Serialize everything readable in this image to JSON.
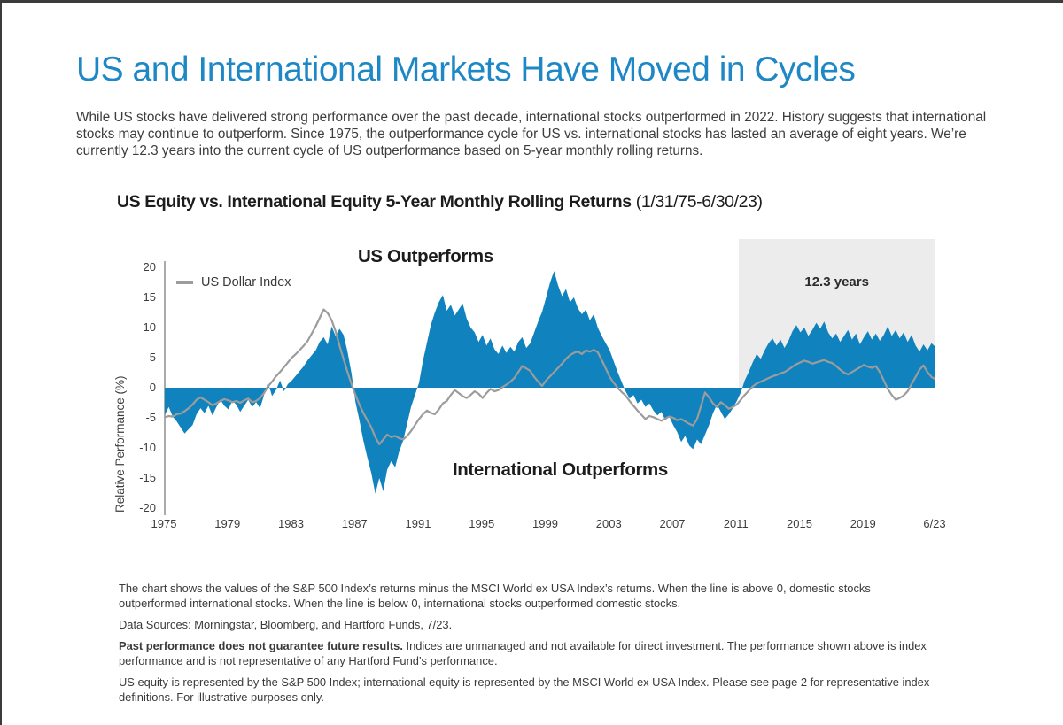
{
  "page": {
    "title": "US and International Markets Have Moved in Cycles",
    "intro": "While US stocks have delivered strong performance over the past decade, international stocks outperformed in 2022. History suggests that international stocks may continue to outperform. Since 1975, the outperformance cycle for US vs. international stocks has lasted an average of eight years. We’re currently 12.3 years into the current cycle of US outperformance based on 5-year monthly rolling returns."
  },
  "chart": {
    "title_bold": "US Equity vs. International Equity 5-Year Monthly Rolling Returns",
    "title_range": "(1/31/75-6/30/23)",
    "y_axis_label": "Relative Performance (%)",
    "legend_label": "US Dollar Index",
    "label_us_outperforms": "US Outperforms",
    "label_international_outperforms": "International Outperforms",
    "highlight_label": "12.3 years",
    "y_ticks": [
      20,
      15,
      10,
      5,
      0,
      -5,
      -10,
      -15,
      -20
    ],
    "x_ticks": [
      {
        "label": "1975",
        "year": 1975
      },
      {
        "label": "1979",
        "year": 1979
      },
      {
        "label": "1983",
        "year": 1983
      },
      {
        "label": "1987",
        "year": 1987
      },
      {
        "label": "1991",
        "year": 1991
      },
      {
        "label": "1995",
        "year": 1995
      },
      {
        "label": "1999",
        "year": 1999
      },
      {
        "label": "2003",
        "year": 2003
      },
      {
        "label": "2007",
        "year": 2007
      },
      {
        "label": "2011",
        "year": 2011
      },
      {
        "label": "2015",
        "year": 2015
      },
      {
        "label": "2019",
        "year": 2019
      },
      {
        "label": "6/23",
        "year": 2023.5
      }
    ],
    "colors": {
      "area_blue": "#1082BD",
      "line_gray": "#9C9C9C",
      "highlight_gray": "#ECECEC",
      "title_blue": "#1E87C5"
    }
  },
  "chart_data": {
    "type": "area",
    "title": "US Equity vs. International Equity 5-Year Monthly Rolling Returns (1/31/75-6/30/23)",
    "xlabel": "",
    "ylabel": "Relative Performance (%)",
    "xlim": [
      1975,
      2023.5
    ],
    "ylim": [
      -20,
      20
    ],
    "grid": false,
    "legend_position": "top-left",
    "x_start": 1975,
    "x_step": 0.25,
    "highlight_region": {
      "from": 2011.2,
      "to": 2023.5,
      "label": "12.3 years"
    },
    "annotations": [
      "US Outperforms",
      "International Outperforms",
      "12.3 years"
    ],
    "series": [
      {
        "name": "US equity minus international equity 5-year rolling return (%)",
        "style": "area",
        "values": [
          -4.5,
          -3.2,
          -4.8,
          -5.6,
          -6.6,
          -7.6,
          -6.9,
          -6.2,
          -4.4,
          -3.4,
          -4.2,
          -3.0,
          -4.6,
          -3.2,
          -2.0,
          -3.0,
          -3.6,
          -2.2,
          -2.8,
          -4.0,
          -3.0,
          -2.0,
          -3.2,
          -2.4,
          -3.4,
          -1.2,
          0.9,
          -1.4,
          -0.4,
          1.2,
          -0.6,
          0.6,
          1.2,
          2.0,
          2.8,
          3.6,
          4.6,
          5.4,
          6.2,
          7.6,
          8.4,
          7.2,
          10.2,
          8.6,
          9.8,
          8.8,
          6.0,
          2.4,
          -2.4,
          -5.4,
          -8.8,
          -11.6,
          -14.2,
          -17.6,
          -15.0,
          -17.2,
          -13.6,
          -12.2,
          -13.2,
          -10.6,
          -8.8,
          -6.0,
          -3.2,
          -1.2,
          0.8,
          4.5,
          7.5,
          10.5,
          12.5,
          14.2,
          15.4,
          12.8,
          13.8,
          12.0,
          13.0,
          14.0,
          11.5,
          10.0,
          9.2,
          7.6,
          8.8,
          7.0,
          8.2,
          6.4,
          5.6,
          7.0,
          5.8,
          6.8,
          6.0,
          7.6,
          8.4,
          6.6,
          7.4,
          9.2,
          11.0,
          12.6,
          15.0,
          17.5,
          19.4,
          17.0,
          15.2,
          16.4,
          14.2,
          15.0,
          13.2,
          12.2,
          13.0,
          11.2,
          12.2,
          10.0,
          8.6,
          7.4,
          6.2,
          4.4,
          2.6,
          1.0,
          -0.6,
          -1.8,
          -1.2,
          -2.6,
          -2.0,
          -3.2,
          -2.6,
          -3.8,
          -4.6,
          -4.0,
          -5.4,
          -4.8,
          -6.2,
          -7.4,
          -9.0,
          -8.0,
          -9.6,
          -10.2,
          -8.6,
          -9.4,
          -7.8,
          -6.2,
          -4.2,
          -2.8,
          -4.0,
          -5.2,
          -4.4,
          -3.4,
          -2.2,
          -0.8,
          1.2,
          2.6,
          4.2,
          5.6,
          4.8,
          6.2,
          7.4,
          8.2,
          7.0,
          8.0,
          6.6,
          7.8,
          9.4,
          10.4,
          9.2,
          10.0,
          8.6,
          9.6,
          10.8,
          9.8,
          11.0,
          9.2,
          8.2,
          9.0,
          7.6,
          8.6,
          9.6,
          8.0,
          9.0,
          7.2,
          8.4,
          9.4,
          8.0,
          9.0,
          7.8,
          8.8,
          10.2,
          8.6,
          9.6,
          8.2,
          9.2,
          7.6,
          8.8,
          7.0,
          6.0,
          7.2,
          6.2,
          7.4,
          6.8
        ]
      },
      {
        "name": "US Dollar Index",
        "style": "line",
        "values": [
          -4.9,
          -4.7,
          -4.8,
          -4.4,
          -4.3,
          -3.9,
          -3.4,
          -2.8,
          -2.0,
          -1.6,
          -2.0,
          -2.4,
          -2.9,
          -2.6,
          -2.2,
          -1.9,
          -2.1,
          -2.4,
          -2.2,
          -2.5,
          -2.1,
          -1.8,
          -2.4,
          -2.2,
          -1.7,
          -0.9,
          0.2,
          1.0,
          1.9,
          2.6,
          3.4,
          4.2,
          5.0,
          5.6,
          6.3,
          7.0,
          7.8,
          9.0,
          10.2,
          11.6,
          13.0,
          12.4,
          11.2,
          9.4,
          7.0,
          4.8,
          2.6,
          0.6,
          -1.2,
          -2.8,
          -4.2,
          -5.4,
          -6.6,
          -8.2,
          -9.4,
          -8.6,
          -7.8,
          -8.2,
          -8.0,
          -8.4,
          -8.6,
          -8.0,
          -7.2,
          -6.2,
          -5.2,
          -4.4,
          -3.8,
          -4.2,
          -4.4,
          -3.6,
          -2.6,
          -2.2,
          -1.2,
          -0.4,
          -0.9,
          -1.4,
          -1.7,
          -1.2,
          -0.6,
          -1.0,
          -1.7,
          -0.9,
          -0.2,
          -0.6,
          -0.4,
          0.1,
          0.5,
          1.0,
          1.6,
          2.6,
          3.6,
          3.2,
          2.8,
          1.8,
          1.0,
          0.3,
          1.2,
          1.9,
          2.6,
          3.3,
          4.0,
          4.8,
          5.4,
          5.8,
          6.0,
          5.6,
          6.2,
          6.0,
          6.3,
          5.9,
          4.6,
          3.2,
          1.8,
          0.8,
          0.0,
          -0.7,
          -1.3,
          -2.2,
          -3.0,
          -3.8,
          -4.5,
          -5.2,
          -4.7,
          -4.9,
          -5.2,
          -5.5,
          -5.1,
          -4.8,
          -5.0,
          -5.4,
          -5.2,
          -5.6,
          -6.0,
          -6.3,
          -5.2,
          -3.0,
          -0.8,
          -1.6,
          -2.6,
          -3.2,
          -2.4,
          -2.9,
          -3.5,
          -3.2,
          -2.8,
          -2.0,
          -1.2,
          -0.5,
          0.2,
          0.7,
          1.0,
          1.3,
          1.6,
          1.9,
          2.1,
          2.4,
          2.6,
          3.0,
          3.5,
          3.9,
          4.2,
          4.5,
          4.3,
          4.0,
          4.2,
          4.4,
          4.6,
          4.3,
          4.1,
          3.6,
          3.0,
          2.5,
          2.2,
          2.6,
          3.0,
          3.4,
          3.8,
          3.5,
          3.3,
          3.6,
          2.6,
          1.2,
          -0.2,
          -1.2,
          -2.0,
          -1.7,
          -1.3,
          -0.6,
          0.6,
          1.8,
          3.0,
          3.7,
          2.6,
          1.8,
          1.4
        ]
      }
    ]
  },
  "footnotes": [
    {
      "lead": "",
      "text": "The chart shows the values of the S&P 500 Index’s returns minus the MSCI World ex USA Index’s returns. When the line is above 0, domestic stocks outperformed international stocks. When the line is below 0, international stocks outperformed domestic stocks."
    },
    {
      "lead": "",
      "text": "Data Sources: Morningstar, Bloomberg, and Hartford Funds, 7/23."
    },
    {
      "lead": "Past performance does not guarantee future results.",
      "text": " Indices are unmanaged and not available for direct investment. The performance shown above is index performance and is not representative of any Hartford Fund’s performance."
    },
    {
      "lead": "",
      "text": "US equity is represented by the S&P 500 Index; international equity is represented by the MSCI World ex USA Index. Please see page 2 for representative index definitions. For illustrative purposes only."
    }
  ]
}
